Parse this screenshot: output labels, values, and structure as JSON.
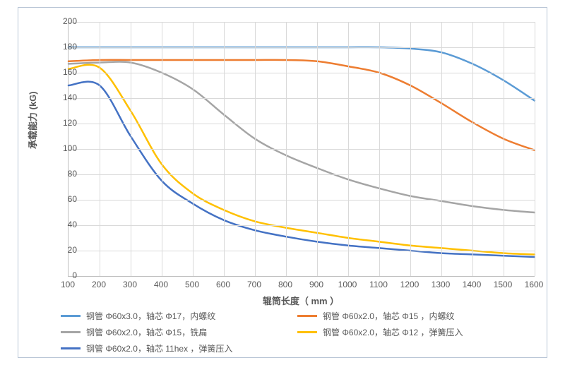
{
  "chart": {
    "type": "line",
    "y_axis": {
      "label": "承载能力  (kG)",
      "min": 0,
      "max": 200,
      "step": 20,
      "label_fontsize": 13,
      "tick_fontsize": 12
    },
    "x_axis": {
      "label": "辊筒长度（  mm ）",
      "min": 100,
      "max": 1600,
      "step": 100,
      "label_fontsize": 13,
      "tick_fontsize": 12
    },
    "background_color": "#ffffff",
    "border_color": "#b8c5d6",
    "grid_color": "#d9d9d9",
    "axis_color": "#bfbfbf",
    "text_color": "#595959",
    "line_width": 2.5,
    "x_values": [
      100,
      200,
      300,
      400,
      500,
      600,
      700,
      800,
      900,
      1000,
      1100,
      1200,
      1300,
      1400,
      1500,
      1600
    ],
    "series": [
      {
        "name": "钢管 Φ60x3.0，轴芯 Φ17，内螺纹",
        "color": "#5b9bd5",
        "values": [
          180,
          180,
          180,
          180,
          180,
          180,
          180,
          180,
          180,
          180,
          180,
          179,
          176,
          167,
          154,
          138
        ]
      },
      {
        "name": "钢管 Φ60x2.0，轴芯 Φ15 ，内螺纹",
        "color": "#ed7d31",
        "values": [
          169,
          170,
          170,
          170,
          170,
          170,
          170,
          170,
          169,
          165,
          160,
          150,
          136,
          121,
          108,
          99
        ]
      },
      {
        "name": "钢管 Φ60x2.0，轴芯 Φ15，铣扁",
        "color": "#a5a5a5",
        "values": [
          167,
          168,
          168,
          160,
          147,
          127,
          108,
          95,
          85,
          76,
          69,
          63,
          59,
          55,
          52,
          50
        ]
      },
      {
        "name": "钢管 Φ60x2.0，轴芯 Φ12 ，弹簧压入",
        "color": "#ffc000",
        "values": [
          163,
          164,
          130,
          88,
          65,
          52,
          43,
          38,
          34,
          30,
          27,
          24,
          22,
          20,
          18,
          17
        ]
      },
      {
        "name": "钢管 Φ60x2.0，轴芯 11hex ，弹簧压入",
        "color": "#4472c4",
        "values": [
          150,
          150,
          110,
          75,
          57,
          44,
          36,
          31,
          27,
          24,
          22,
          20,
          18,
          17,
          16,
          15
        ]
      }
    ],
    "legend_layout": [
      [
        0,
        1
      ],
      [
        2,
        3
      ],
      [
        4
      ]
    ]
  }
}
